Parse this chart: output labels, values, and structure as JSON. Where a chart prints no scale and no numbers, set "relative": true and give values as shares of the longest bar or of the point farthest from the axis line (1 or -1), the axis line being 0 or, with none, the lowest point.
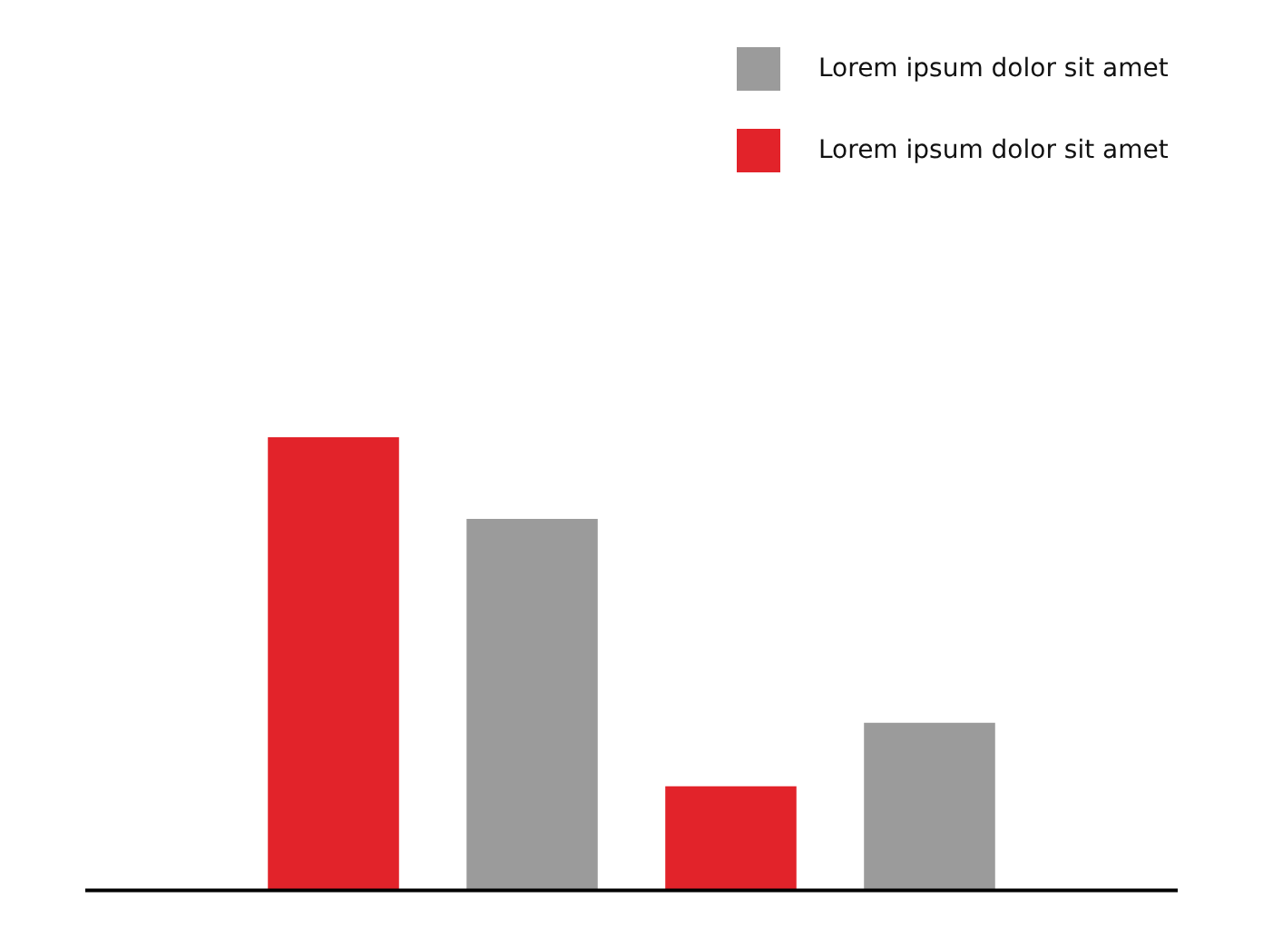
{
  "chart_data": {
    "type": "bar",
    "relative": true,
    "categories": [
      null,
      null,
      null,
      null
    ],
    "legend": "top right",
    "stacked": true,
    "series": [
      {
        "name": "Lorem ipsum dolor sit amet",
        "color": "#9b9b9b",
        "values": [
          null,
          0.82,
          null,
          0.37
        ]
      },
      {
        "name": "Lorem ipsum dolor sit amet",
        "color": "#e2232a",
        "values": [
          1,
          null,
          0.23,
          null
        ]
      }
    ]
  }
}
